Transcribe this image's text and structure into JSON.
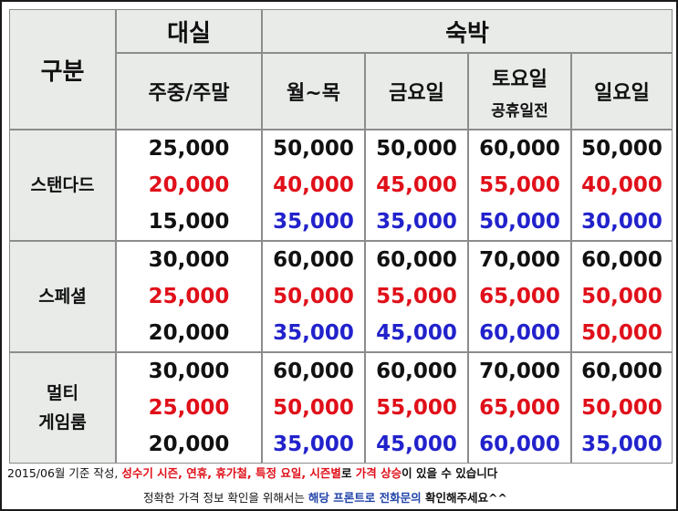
{
  "header": {
    "category_label": "구분",
    "rental_label": "대실",
    "rental_sub": "주중/주말",
    "stay_label": "숙박",
    "days": [
      "월~목",
      "금요일",
      "토요일",
      "일요일"
    ],
    "saturday_sub": "공휴일전"
  },
  "rooms": [
    {
      "name": "스탠다드",
      "rental": [
        "25,000",
        "20,000",
        "15,000"
      ],
      "mon_thu": [
        "50,000",
        "40,000",
        "35,000"
      ],
      "fri": [
        "50,000",
        "45,000",
        "35,000"
      ],
      "sat": [
        "60,000",
        "55,000",
        "50,000"
      ],
      "sun": [
        "50,000",
        "40,000",
        "30,000"
      ]
    },
    {
      "name": "스페셜",
      "rental": [
        "30,000",
        "25,000",
        "20,000"
      ],
      "mon_thu": [
        "60,000",
        "50,000",
        "35,000"
      ],
      "fri": [
        "60,000",
        "55,000",
        "45,000"
      ],
      "sat": [
        "70,000",
        "65,000",
        "60,000"
      ],
      "sun": [
        "60,000",
        "50,000",
        "50,000"
      ]
    },
    {
      "name_line1": "멀티",
      "name_line2": "게임룸",
      "rental": [
        "30,000",
        "25,000",
        "20,000"
      ],
      "mon_thu": [
        "60,000",
        "50,000",
        "35,000"
      ],
      "fri": [
        "60,000",
        "55,000",
        "45,000"
      ],
      "sat": [
        "70,000",
        "65,000",
        "60,000"
      ],
      "sun": [
        "60,000",
        "50,000",
        "35,000"
      ]
    }
  ],
  "colors": {
    "top_tier": "#111111",
    "mid_tier": "#e0101a",
    "low_tier": "#2222cc"
  },
  "footer": {
    "line1_a": "2015/06월 기준 작성, ",
    "line1_b": "성수기 시즌, 연휴, 휴가철, 특정 요일, 시즌별",
    "line1_c": "로 ",
    "line1_d": "가격 상승",
    "line1_e": "이 있을 수 있습니다",
    "line2_a": "정확한 가격 정보 확인을 위해서는 ",
    "line2_b": "해당 프론트로 전화문의",
    "line2_c": " 확인해주세요^^"
  }
}
